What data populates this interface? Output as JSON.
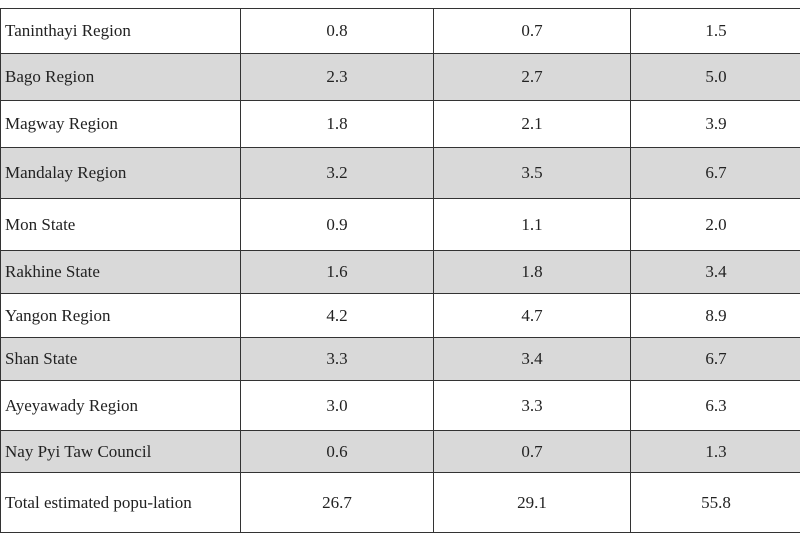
{
  "table": {
    "rows": [
      [
        "Taninthayi Region",
        "0.8",
        "0.7",
        "1.5"
      ],
      [
        "Bago Region",
        "2.3",
        "2.7",
        "5.0"
      ],
      [
        "Magway Region",
        "1.8",
        "2.1",
        "3.9"
      ],
      [
        "Mandalay Region",
        "3.2",
        "3.5",
        "6.7"
      ],
      [
        "Mon State",
        "0.9",
        "1.1",
        "2.0"
      ],
      [
        "Rakhine State",
        "1.6",
        "1.8",
        "3.4"
      ],
      [
        "Yangon Region",
        "4.2",
        "4.7",
        "8.9"
      ],
      [
        "Shan State",
        "3.3",
        "3.4",
        "6.7"
      ],
      [
        "Ayeyawady Region",
        "3.0",
        "3.3",
        "6.3"
      ],
      [
        "Nay Pyi Taw Council",
        "0.6",
        "0.7",
        "1.3"
      ],
      [
        "Total estimated popu-lation",
        "26.7",
        "29.1",
        "55.8"
      ]
    ]
  }
}
